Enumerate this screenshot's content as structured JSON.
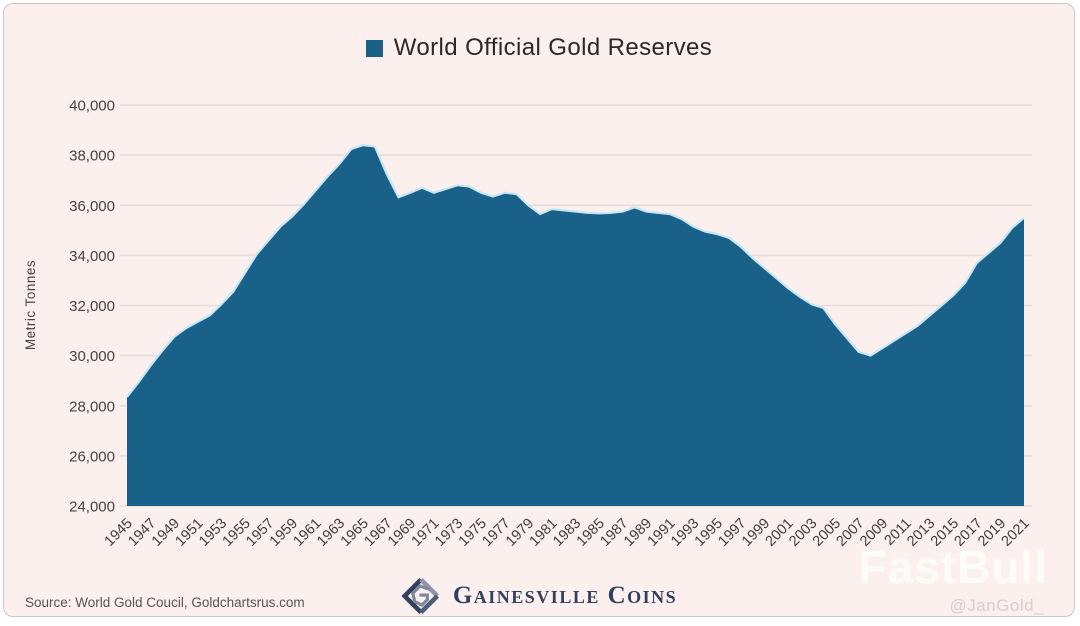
{
  "legend": {
    "marker_color": "#1a6189",
    "title": "World Official Gold Reserves"
  },
  "y_axis": {
    "label": "Metric Tonnes",
    "tick_labels": [
      "40,000",
      "38,000",
      "36,000",
      "34,000",
      "32,000",
      "30,000",
      "28,000",
      "26,000",
      "24,000"
    ],
    "tick_values": [
      40000,
      38000,
      36000,
      34000,
      32000,
      30000,
      28000,
      26000,
      24000
    ]
  },
  "x_axis": {
    "tick_years": [
      1945,
      1947,
      1949,
      1951,
      1953,
      1955,
      1957,
      1959,
      1961,
      1963,
      1965,
      1967,
      1969,
      1971,
      1973,
      1975,
      1977,
      1979,
      1981,
      1983,
      1985,
      1987,
      1989,
      1991,
      1993,
      1995,
      1997,
      1999,
      2001,
      2003,
      2005,
      2007,
      2009,
      2011,
      2013,
      2015,
      2017,
      2019,
      2021
    ]
  },
  "footer": {
    "source": "Source: World Gold Coucil, Goldchartsrus.com",
    "brand": "Gainesville Coins"
  },
  "watermark": {
    "text": "FastBull",
    "handle": "@JanGold_"
  },
  "chart_data": {
    "type": "area",
    "title": "World Official Gold Reserves",
    "xlabel": "",
    "ylabel": "Metric Tonnes",
    "ylim": [
      24000,
      40000
    ],
    "grid": true,
    "legend_position": "top-center",
    "fill_color": "#1a6189",
    "edge_color": "#c9e7f3",
    "background_color": "#fbf0ed",
    "gridline_color": "#e7dcd9",
    "x": [
      1945,
      1946,
      1947,
      1948,
      1949,
      1950,
      1951,
      1952,
      1953,
      1954,
      1955,
      1956,
      1957,
      1958,
      1959,
      1960,
      1961,
      1962,
      1963,
      1964,
      1965,
      1966,
      1967,
      1968,
      1969,
      1970,
      1971,
      1972,
      1973,
      1974,
      1975,
      1976,
      1977,
      1978,
      1979,
      1980,
      1981,
      1982,
      1983,
      1984,
      1985,
      1986,
      1987,
      1988,
      1989,
      1990,
      1991,
      1992,
      1993,
      1994,
      1995,
      1996,
      1997,
      1998,
      1999,
      2000,
      2001,
      2002,
      2003,
      2004,
      2005,
      2006,
      2007,
      2008,
      2009,
      2010,
      2011,
      2012,
      2013,
      2014,
      2015,
      2016,
      2017,
      2018,
      2019,
      2020,
      2021
    ],
    "values": [
      28350,
      28950,
      29600,
      30200,
      30750,
      31100,
      31350,
      31600,
      32050,
      32550,
      33300,
      34050,
      34600,
      35150,
      35550,
      36050,
      36600,
      37150,
      37650,
      38250,
      38400,
      38350,
      37250,
      36320,
      36500,
      36700,
      36500,
      36650,
      36800,
      36750,
      36500,
      36350,
      36500,
      36450,
      36000,
      35650,
      35850,
      35800,
      35750,
      35700,
      35680,
      35700,
      35750,
      35920,
      35750,
      35700,
      35650,
      35450,
      35150,
      34950,
      34850,
      34700,
      34350,
      33900,
      33500,
      33100,
      32700,
      32350,
      32050,
      31900,
      31250,
      30700,
      30150,
      30000,
      30300,
      30600,
      30900,
      31200,
      31600,
      32000,
      32400,
      32900,
      33700,
      34100,
      34500,
      35100,
      35500
    ]
  }
}
